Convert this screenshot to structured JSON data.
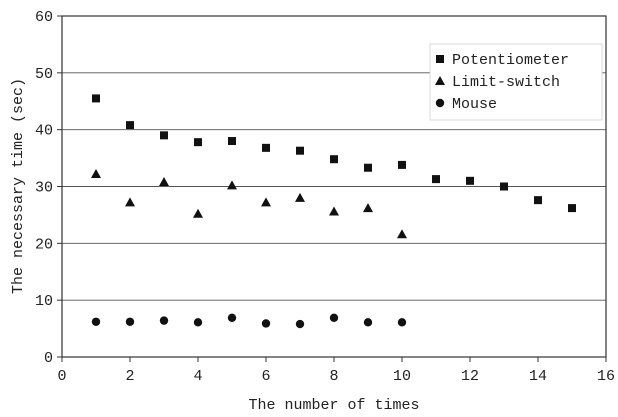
{
  "chart_data": {
    "type": "scatter",
    "xlabel": "The number of times",
    "ylabel": "The necessary time (sec)",
    "xlim": [
      0,
      16
    ],
    "ylim": [
      0,
      60
    ],
    "x_ticks": [
      "0",
      "2",
      "4",
      "6",
      "8",
      "10",
      "12",
      "14",
      "16"
    ],
    "y_ticks": [
      "0",
      "10",
      "20",
      "30",
      "40",
      "50",
      "60"
    ],
    "grid": "horizontal",
    "legend_position": "top-right",
    "series": [
      {
        "name": "Potentiometer",
        "marker": "square",
        "color": "#111111",
        "x": [
          1,
          2,
          3,
          4,
          5,
          6,
          7,
          8,
          9,
          10,
          11,
          12,
          13,
          14,
          15
        ],
        "y": [
          45.5,
          40.8,
          39.0,
          37.8,
          38.0,
          36.8,
          36.3,
          34.8,
          33.3,
          33.8,
          31.3,
          31.0,
          30.0,
          27.6,
          26.2
        ]
      },
      {
        "name": "Limit-switch",
        "marker": "triangle",
        "color": "#111111",
        "x": [
          1,
          2,
          3,
          4,
          5,
          6,
          7,
          8,
          9,
          10
        ],
        "y": [
          32.2,
          27.2,
          30.8,
          25.2,
          30.2,
          27.2,
          28.0,
          25.6,
          26.2,
          21.6
        ]
      },
      {
        "name": "Mouse",
        "marker": "circle",
        "color": "#111111",
        "x": [
          1,
          2,
          3,
          4,
          5,
          6,
          7,
          8,
          9,
          10
        ],
        "y": [
          6.2,
          6.2,
          6.4,
          6.1,
          6.9,
          5.9,
          5.8,
          6.9,
          6.1,
          6.1
        ]
      }
    ]
  }
}
